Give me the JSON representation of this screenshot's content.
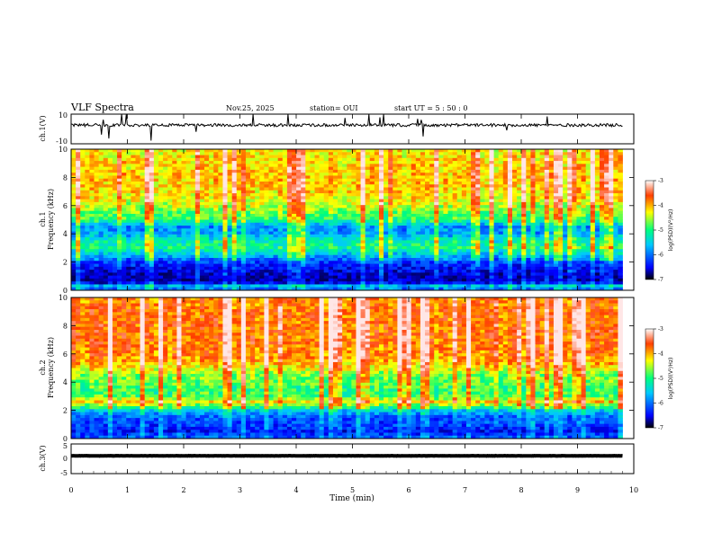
{
  "header": {
    "title": "VLF Spectra",
    "date": "Nov.25, 2025",
    "station": "station= OUI",
    "start": "start  UT =  5 : 50 : 0"
  },
  "chart_data": {
    "type": "heatmap",
    "time_axis": {
      "label": "Time (min)",
      "range": [
        0,
        10
      ],
      "ticks": [
        0,
        1,
        2,
        3,
        4,
        5,
        6,
        7,
        8,
        9,
        10
      ],
      "data_end": 9.8
    },
    "panels": [
      {
        "id": "ch1-waveform",
        "type": "line",
        "ylabel": "ch.1(V)",
        "ylim": [
          -10,
          10
        ],
        "yticks": [
          "10",
          "-10"
        ],
        "baseline_value": 2.6,
        "color": "#000000"
      },
      {
        "id": "ch1-spectrogram",
        "type": "heatmap",
        "ylabel_channel": "ch.1",
        "ylabel": "Frequency (kHz)",
        "ylim": [
          0,
          10
        ],
        "yticks": [
          0,
          2,
          4,
          6,
          8,
          10
        ],
        "intensity_profile_khz": [
          [
            0.0,
            -6.2
          ],
          [
            0.3,
            -5.7
          ],
          [
            0.6,
            -6.9
          ],
          [
            1.0,
            -6.8
          ],
          [
            1.5,
            -6.6
          ],
          [
            2.0,
            -6.3
          ],
          [
            2.5,
            -5.8
          ],
          [
            3.0,
            -5.2
          ],
          [
            3.5,
            -5.4
          ],
          [
            4.0,
            -5.9
          ],
          [
            4.5,
            -6.0
          ],
          [
            5.0,
            -5.1
          ],
          [
            5.5,
            -4.9
          ],
          [
            6.0,
            -4.6
          ],
          [
            7.0,
            -4.3
          ],
          [
            8.0,
            -4.2
          ],
          [
            9.0,
            -4.3
          ],
          [
            10.0,
            -4.4
          ]
        ]
      },
      {
        "id": "ch2-spectrogram",
        "type": "heatmap",
        "ylabel_channel": "ch.2",
        "ylabel": "Frequency (kHz)",
        "ylim": [
          0,
          10
        ],
        "yticks": [
          0,
          2,
          4,
          6,
          8,
          10
        ],
        "intensity_profile_khz": [
          [
            0.0,
            -6.1
          ],
          [
            0.5,
            -6.5
          ],
          [
            1.0,
            -6.3
          ],
          [
            1.5,
            -6.2
          ],
          [
            2.0,
            -5.6
          ],
          [
            2.6,
            -4.3
          ],
          [
            3.0,
            -5.0
          ],
          [
            3.5,
            -5.1
          ],
          [
            4.0,
            -4.9
          ],
          [
            4.5,
            -4.8
          ],
          [
            5.0,
            -4.4
          ],
          [
            5.5,
            -4.1
          ],
          [
            6.0,
            -4.0
          ],
          [
            7.0,
            -3.9
          ],
          [
            8.0,
            -3.9
          ],
          [
            9.0,
            -3.9
          ],
          [
            10.0,
            -4.0
          ]
        ]
      },
      {
        "id": "ch3-waveform",
        "type": "line",
        "ylabel": "ch.3(V)",
        "ylim": [
          -5,
          5
        ],
        "yticks": [
          "5",
          "0",
          "-5"
        ],
        "baseline_value": 1.0,
        "color": "#000000"
      }
    ],
    "colorbar": {
      "label": "log(PSD)(V²/Hz)",
      "range": [
        -7,
        -3
      ],
      "ticks": [
        "-3",
        "-4",
        "-5",
        "-6",
        "-7"
      ],
      "colormap": [
        "#00008b",
        "#0000ff",
        "#00c8ff",
        "#00ff80",
        "#ffff00",
        "#ff8000",
        "#ff0000",
        "#ffffff"
      ]
    }
  }
}
